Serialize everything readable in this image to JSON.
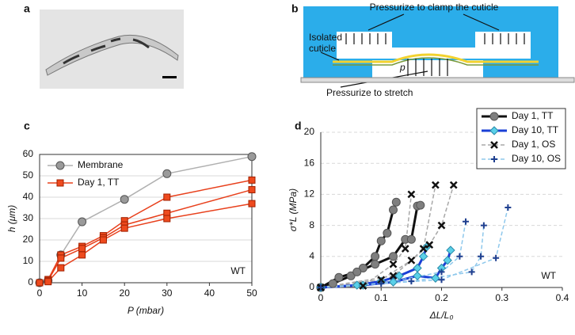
{
  "panel_labels": [
    "a",
    "b",
    "c",
    "d"
  ],
  "diagram": {
    "clamp_text": "Pressurize to clamp the cuticle",
    "cuticle_text": [
      "Isolated",
      "cuticle"
    ],
    "pressure_symbol": "p",
    "stretch_text": "Pressurize to stretch"
  },
  "chart_data": [
    {
      "type": "line",
      "x_label": "P (mbar)",
      "y_label": "h (μm)",
      "annotation": "WT",
      "xlim": [
        0,
        50
      ],
      "xticks": [
        0,
        10,
        20,
        30,
        40,
        50
      ],
      "ylim": [
        0,
        60
      ],
      "yticks": [
        0,
        10,
        20,
        30,
        40,
        50,
        60
      ],
      "grid": true,
      "legend": "upper left",
      "series": [
        {
          "name": "Membrane",
          "color": "#b0b0b0",
          "marker": "circle",
          "marker_color": "#9a9a9a",
          "x": [
            0,
            2,
            5,
            10,
            20,
            30,
            50
          ],
          "values": [
            0,
            1,
            13,
            28.5,
            39,
            51,
            59
          ]
        },
        {
          "name": "Day 1, TT",
          "color": "#e8401c",
          "marker": "square",
          "marker_color": "#ee4a1e",
          "x": [
            0,
            2,
            5,
            10,
            15,
            20,
            30,
            50
          ],
          "values": [
            0,
            1.5,
            13,
            17,
            22,
            29,
            40,
            48
          ]
        },
        {
          "color": "#e8401c",
          "marker": "square",
          "marker_color": "#ee4a1e",
          "x": [
            0,
            2,
            5,
            10,
            15,
            20,
            30,
            50
          ],
          "values": [
            0,
            1,
            11.5,
            16,
            21,
            27,
            32.5,
            43.5
          ]
        },
        {
          "color": "#e8401c",
          "marker": "square",
          "marker_color": "#ee4a1e",
          "x": [
            0,
            2,
            5,
            10,
            15,
            20,
            30,
            50
          ],
          "values": [
            0,
            0.5,
            7,
            13,
            20,
            25.5,
            30,
            37
          ]
        }
      ]
    },
    {
      "type": "line",
      "x_label": "ΔL/L₀",
      "y_label": "σ*L (MPa)",
      "annotation": "WT",
      "xlim": [
        0,
        0.4
      ],
      "xticks": [
        0,
        0.1,
        0.2,
        0.3,
        0.4
      ],
      "ylim": [
        0,
        20
      ],
      "yticks": [
        0,
        4,
        8,
        12,
        16,
        20
      ],
      "grid": true,
      "legend": "upper right",
      "series": [
        {
          "name": "Day 1, TT",
          "color": "#111111",
          "width": 3,
          "marker": "circle",
          "marker_color": "#7f7f7f",
          "x": [
            0,
            0.02,
            0.05,
            0.07,
            0.09,
            0.1,
            0.11,
            0.12,
            0.125
          ],
          "values": [
            0,
            0.5,
            1.5,
            2.5,
            4,
            6,
            7,
            10,
            11
          ]
        },
        {
          "color": "#111111",
          "width": 3,
          "marker": "circle",
          "marker_color": "#7f7f7f",
          "x": [
            0,
            0.03,
            0.06,
            0.09,
            0.12,
            0.14,
            0.15,
            0.16,
            0.165
          ],
          "values": [
            0,
            1.3,
            2,
            3,
            4,
            6.2,
            6.2,
            10.5,
            10.6
          ]
        },
        {
          "name": "Day 10, TT",
          "color": "#1a3fd6",
          "width": 3,
          "marker": "diamond",
          "marker_color": "#5ad0e8",
          "x": [
            0,
            0.06,
            0.1,
            0.13,
            0.16,
            0.17,
            0.175
          ],
          "values": [
            0,
            0.3,
            0.8,
            1.5,
            2.5,
            4,
            5.2
          ]
        },
        {
          "color": "#1a3fd6",
          "width": 3,
          "marker": "diamond",
          "marker_color": "#5ad0e8",
          "x": [
            0,
            0.07,
            0.12,
            0.16,
            0.19,
            0.2,
            0.21,
            0.215
          ],
          "values": [
            0,
            0.3,
            0.7,
            1.5,
            1.2,
            2.5,
            3.5,
            4.8
          ]
        },
        {
          "name": "Day 1, OS",
          "color": "#a8a8a8",
          "dash": true,
          "width": 1.5,
          "marker": "x",
          "marker_color": "#111111",
          "x": [
            0,
            0.07,
            0.12,
            0.14,
            0.15
          ],
          "values": [
            0,
            0.2,
            3,
            5,
            12
          ]
        },
        {
          "color": "#a8a8a8",
          "dash": true,
          "width": 1.5,
          "marker": "x",
          "marker_color": "#111111",
          "x": [
            0,
            0.1,
            0.15,
            0.17,
            0.19
          ],
          "values": [
            0,
            1,
            3.5,
            5,
            13.2
          ]
        },
        {
          "color": "#a8a8a8",
          "dash": true,
          "width": 1.5,
          "marker": "x",
          "marker_color": "#111111",
          "x": [
            0,
            0.12,
            0.18,
            0.2,
            0.22
          ],
          "values": [
            0,
            1.5,
            5.5,
            8,
            13.2
          ]
        },
        {
          "name": "Day 10, OS",
          "color": "#8ec8ec",
          "dash": true,
          "width": 1.5,
          "marker": "plus",
          "marker_color": "#1f3f8f",
          "x": [
            0,
            0.1,
            0.2,
            0.23,
            0.24
          ],
          "values": [
            0,
            0.5,
            2,
            4,
            8.5
          ]
        },
        {
          "color": "#8ec8ec",
          "dash": true,
          "width": 1.5,
          "marker": "plus",
          "marker_color": "#1f3f8f",
          "x": [
            0,
            0.15,
            0.25,
            0.265,
            0.27
          ],
          "values": [
            0,
            0.8,
            2,
            4,
            8
          ]
        },
        {
          "color": "#8ec8ec",
          "dash": true,
          "width": 1.5,
          "marker": "plus",
          "marker_color": "#1f3f8f",
          "x": [
            0,
            0.2,
            0.29,
            0.31
          ],
          "values": [
            0,
            1,
            3.8,
            10.3
          ]
        }
      ]
    }
  ]
}
